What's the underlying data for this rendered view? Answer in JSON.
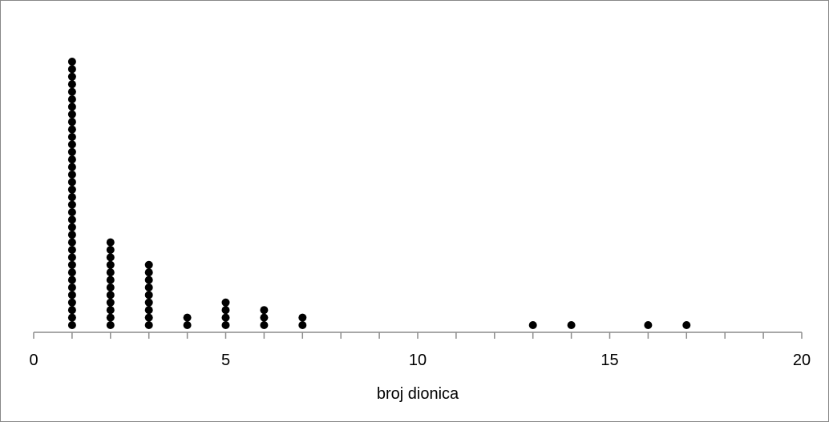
{
  "chart_data": {
    "type": "scatter",
    "subtype": "dot-plot",
    "title": "",
    "xlabel": "broj dionica",
    "ylabel": "",
    "xlim": [
      0,
      20
    ],
    "x_ticks": [
      0,
      5,
      10,
      15,
      20
    ],
    "x_minor_step": 1,
    "grid": false,
    "legend": "none",
    "marker_color": "#000000",
    "points": [
      {
        "x": 1,
        "count": 36
      },
      {
        "x": 2,
        "count": 12
      },
      {
        "x": 3,
        "count": 9
      },
      {
        "x": 4,
        "count": 2
      },
      {
        "x": 5,
        "count": 4
      },
      {
        "x": 6,
        "count": 3
      },
      {
        "x": 7,
        "count": 2
      },
      {
        "x": 13,
        "count": 1
      },
      {
        "x": 14,
        "count": 1
      },
      {
        "x": 16,
        "count": 1
      },
      {
        "x": 17,
        "count": 1
      }
    ]
  }
}
